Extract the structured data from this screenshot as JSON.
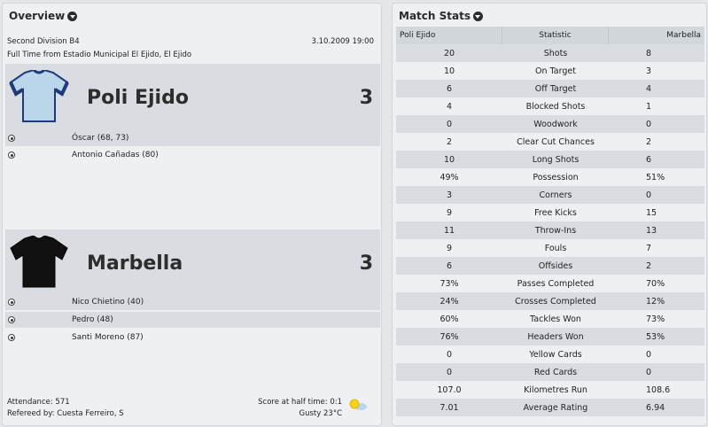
{
  "overview": {
    "title": "Overview",
    "competition": "Second Division B4",
    "date": "3.10.2009 19:00",
    "venue": "Full Time from Estadio Municipal El Ejido, El Ejido",
    "home": {
      "name": "Poli Ejido",
      "score": "3",
      "shirt_color": "#b9d6ea",
      "trim_color": "#1e3a78",
      "scorers": [
        "Óscar (68, 73)",
        "Antonio Cañadas (80)"
      ]
    },
    "away": {
      "name": "Marbella",
      "score": "3",
      "shirt_color": "#111111",
      "scorers": [
        "Nico Chietino (40)",
        "Pedro (48)",
        "Santi Moreno (87)"
      ]
    },
    "attendance": "Attendance: 571",
    "referee": "Refereed by: Cuesta Ferreiro, S",
    "halftime": "Score at half time: 0:1",
    "weather": "Gusty 23°C",
    "weather_icon": "sun-cloud-icon"
  },
  "stats": {
    "title": "Match Stats",
    "header": {
      "home": "Poli Ejido",
      "stat": "Statistic",
      "away": "Marbella"
    },
    "rows": [
      {
        "home": "20",
        "stat": "Shots",
        "away": "8"
      },
      {
        "home": "10",
        "stat": "On Target",
        "away": "3"
      },
      {
        "home": "6",
        "stat": "Off Target",
        "away": "4"
      },
      {
        "home": "4",
        "stat": "Blocked Shots",
        "away": "1"
      },
      {
        "home": "0",
        "stat": "Woodwork",
        "away": "0"
      },
      {
        "home": "2",
        "stat": "Clear Cut Chances",
        "away": "2"
      },
      {
        "home": "10",
        "stat": "Long Shots",
        "away": "6"
      },
      {
        "home": "49%",
        "stat": "Possession",
        "away": "51%"
      },
      {
        "home": "3",
        "stat": "Corners",
        "away": "0"
      },
      {
        "home": "9",
        "stat": "Free Kicks",
        "away": "15"
      },
      {
        "home": "11",
        "stat": "Throw-Ins",
        "away": "13"
      },
      {
        "home": "9",
        "stat": "Fouls",
        "away": "7"
      },
      {
        "home": "6",
        "stat": "Offsides",
        "away": "2"
      },
      {
        "home": "73%",
        "stat": "Passes Completed",
        "away": "70%"
      },
      {
        "home": "24%",
        "stat": "Crosses Completed",
        "away": "12%"
      },
      {
        "home": "60%",
        "stat": "Tackles Won",
        "away": "73%"
      },
      {
        "home": "76%",
        "stat": "Headers Won",
        "away": "53%"
      },
      {
        "home": "0",
        "stat": "Yellow Cards",
        "away": "0"
      },
      {
        "home": "0",
        "stat": "Red Cards",
        "away": "0"
      },
      {
        "home": "107.0",
        "stat": "Kilometres Run",
        "away": "108.6"
      },
      {
        "home": "7.01",
        "stat": "Average Rating",
        "away": "6.94"
      }
    ]
  }
}
